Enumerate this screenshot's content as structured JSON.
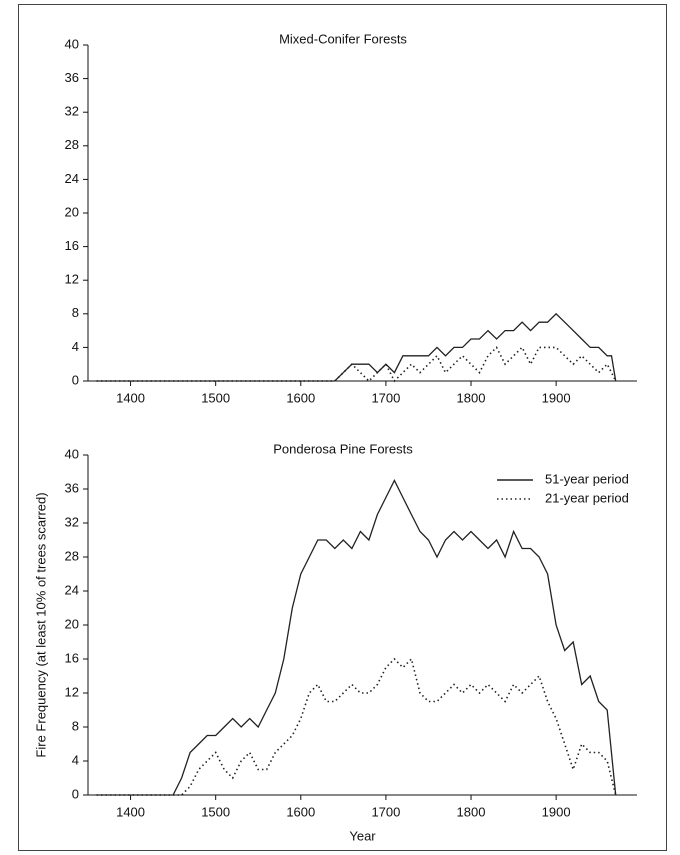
{
  "chart_data": [
    {
      "type": "line",
      "title": "Mixed-Conifer Forests",
      "x": [
        1360,
        1640,
        1650,
        1660,
        1670,
        1680,
        1690,
        1700,
        1710,
        1720,
        1730,
        1740,
        1750,
        1760,
        1770,
        1780,
        1790,
        1800,
        1810,
        1820,
        1830,
        1840,
        1850,
        1860,
        1870,
        1880,
        1890,
        1900,
        1910,
        1920,
        1930,
        1940,
        1950,
        1960,
        1965,
        1970
      ],
      "series": [
        {
          "color": "#222222",
          "linestyle": "solid",
          "values": [
            0,
            0,
            1,
            2,
            2,
            2,
            1,
            2,
            1,
            3,
            3,
            3,
            3,
            4,
            3,
            4,
            4,
            5,
            5,
            6,
            5,
            6,
            6,
            7,
            6,
            7,
            7,
            8,
            7,
            6,
            5,
            4,
            4,
            3,
            3,
            0
          ]
        },
        {
          "color": "#222222",
          "linestyle": "dotted",
          "values": [
            0,
            0,
            1,
            2,
            1,
            0,
            1,
            2,
            0,
            1,
            2,
            1,
            2,
            3,
            1,
            2,
            3,
            2,
            1,
            3,
            4,
            2,
            3,
            4,
            2,
            4,
            4,
            4,
            3,
            2,
            3,
            2,
            1,
            2,
            1,
            0
          ]
        }
      ],
      "xlim": [
        1350,
        1995
      ],
      "xticks": [
        1400,
        1500,
        1600,
        1700,
        1800,
        1900
      ],
      "ylim": [
        0,
        40
      ],
      "yticks": [
        0,
        4,
        8,
        12,
        16,
        20,
        24,
        28,
        32,
        36,
        40
      ]
    },
    {
      "type": "line",
      "title": "Ponderosa Pine Forests",
      "xlabel": "Year",
      "ylabel": "Fire Frequency (at least 10% of trees scarred)",
      "x": [
        1360,
        1450,
        1460,
        1470,
        1480,
        1490,
        1500,
        1510,
        1520,
        1530,
        1540,
        1550,
        1560,
        1570,
        1580,
        1590,
        1600,
        1610,
        1620,
        1630,
        1640,
        1650,
        1660,
        1670,
        1680,
        1690,
        1700,
        1710,
        1720,
        1730,
        1740,
        1750,
        1760,
        1770,
        1780,
        1790,
        1800,
        1810,
        1820,
        1830,
        1840,
        1850,
        1860,
        1870,
        1880,
        1890,
        1900,
        1910,
        1920,
        1930,
        1940,
        1950,
        1960,
        1970
      ],
      "series": [
        {
          "name": "51-year period",
          "color": "#222222",
          "linestyle": "solid",
          "values": [
            0,
            0,
            2,
            5,
            6,
            7,
            7,
            8,
            9,
            8,
            9,
            8,
            10,
            12,
            16,
            22,
            26,
            28,
            30,
            30,
            29,
            30,
            29,
            31,
            30,
            33,
            35,
            37,
            35,
            33,
            31,
            30,
            28,
            30,
            31,
            30,
            31,
            30,
            29,
            30,
            28,
            31,
            29,
            29,
            28,
            26,
            20,
            17,
            18,
            13,
            14,
            11,
            10,
            0
          ]
        },
        {
          "name": "21-year period",
          "color": "#222222",
          "linestyle": "dotted",
          "values": [
            0,
            0,
            0,
            1,
            3,
            4,
            5,
            3,
            2,
            4,
            5,
            3,
            3,
            5,
            6,
            7,
            9,
            12,
            13,
            11,
            11,
            12,
            13,
            12,
            12,
            13,
            15,
            16,
            15,
            16,
            12,
            11,
            11,
            12,
            13,
            12,
            13,
            12,
            13,
            12,
            11,
            13,
            12,
            13,
            14,
            11,
            9,
            6,
            3,
            6,
            5,
            5,
            4,
            0
          ]
        }
      ],
      "legend": "upper right",
      "xlim": [
        1350,
        1995
      ],
      "xticks": [
        1400,
        1500,
        1600,
        1700,
        1800,
        1900
      ],
      "ylim": [
        0,
        40
      ],
      "yticks": [
        0,
        4,
        8,
        12,
        16,
        20,
        24,
        28,
        32,
        36,
        40
      ]
    }
  ]
}
